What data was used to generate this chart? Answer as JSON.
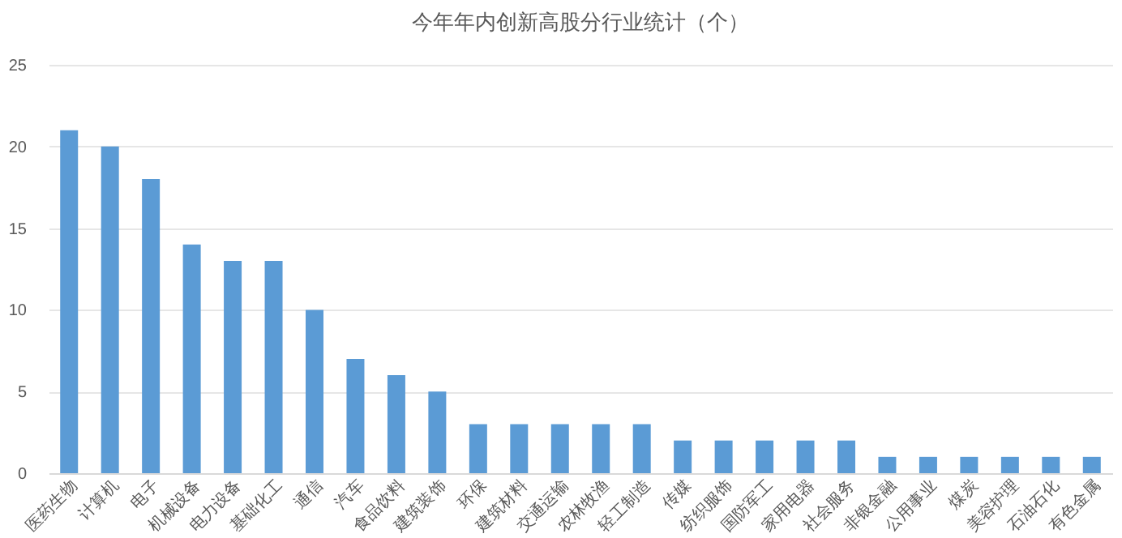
{
  "chart_data": {
    "type": "bar",
    "title": "今年年内创新高股分行业统计（个）",
    "categories": [
      "医药生物",
      "计算机",
      "电子",
      "机械设备",
      "电力设备",
      "基础化工",
      "通信",
      "汽车",
      "食品饮料",
      "建筑装饰",
      "环保",
      "建筑材料",
      "交通运输",
      "农林牧渔",
      "轻工制造",
      "传媒",
      "纺织服饰",
      "国防军工",
      "家用电器",
      "社会服务",
      "非银金融",
      "公用事业",
      "煤炭",
      "美容护理",
      "石油石化",
      "有色金属"
    ],
    "values": [
      21,
      20,
      18,
      14,
      13,
      13,
      10,
      7,
      6,
      5,
      3,
      3,
      3,
      3,
      3,
      2,
      2,
      2,
      2,
      2,
      1,
      1,
      1,
      1,
      1,
      1
    ],
    "color": "#5b9bd5",
    "ylim": [
      0,
      25
    ],
    "yticks": [
      0,
      5,
      10,
      15,
      20,
      25
    ],
    "grid": "y"
  }
}
